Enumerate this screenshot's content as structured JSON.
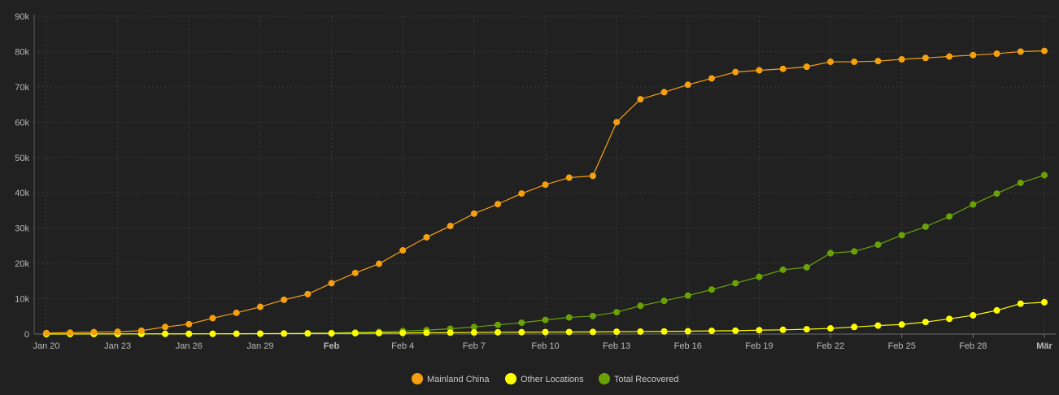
{
  "chart_data": {
    "type": "line",
    "title": "",
    "xlabel": "",
    "ylabel": "",
    "ylim": [
      0,
      90000
    ],
    "grid": true,
    "legend_position": "bottom-center",
    "y_ticks": [
      "0",
      "10k",
      "20k",
      "30k",
      "40k",
      "50k",
      "60k",
      "70k",
      "80k",
      "90k"
    ],
    "x_ticks": [
      {
        "label": "Jan 20",
        "index": 0,
        "bold": false
      },
      {
        "label": "Jan 23",
        "index": 3,
        "bold": false
      },
      {
        "label": "Jan 26",
        "index": 6,
        "bold": false
      },
      {
        "label": "Jan 29",
        "index": 9,
        "bold": false
      },
      {
        "label": "Feb",
        "index": 12,
        "bold": true
      },
      {
        "label": "Feb 4",
        "index": 15,
        "bold": false
      },
      {
        "label": "Feb 7",
        "index": 18,
        "bold": false
      },
      {
        "label": "Feb 10",
        "index": 21,
        "bold": false
      },
      {
        "label": "Feb 13",
        "index": 24,
        "bold": false
      },
      {
        "label": "Feb 16",
        "index": 27,
        "bold": false
      },
      {
        "label": "Feb 19",
        "index": 30,
        "bold": false
      },
      {
        "label": "Feb 22",
        "index": 33,
        "bold": false
      },
      {
        "label": "Feb 25",
        "index": 36,
        "bold": false
      },
      {
        "label": "Feb 28",
        "index": 39,
        "bold": false
      },
      {
        "label": "Mär",
        "index": 42,
        "bold": true
      }
    ],
    "x": [
      "Jan 20",
      "Jan 21",
      "Jan 22",
      "Jan 23",
      "Jan 24",
      "Jan 25",
      "Jan 26",
      "Jan 27",
      "Jan 28",
      "Jan 29",
      "Jan 30",
      "Jan 31",
      "Feb 1",
      "Feb 2",
      "Feb 3",
      "Feb 4",
      "Feb 5",
      "Feb 6",
      "Feb 7",
      "Feb 8",
      "Feb 9",
      "Feb 10",
      "Feb 11",
      "Feb 12",
      "Feb 13",
      "Feb 14",
      "Feb 15",
      "Feb 16",
      "Feb 17",
      "Feb 18",
      "Feb 19",
      "Feb 20",
      "Feb 21",
      "Feb 22",
      "Feb 23",
      "Feb 24",
      "Feb 25",
      "Feb 26",
      "Feb 27",
      "Feb 28",
      "Feb 29",
      "Mar 1",
      "Mar 2"
    ],
    "series": [
      {
        "name": "Mainland China",
        "color": "#f5a00f",
        "values": [
          300,
          400,
          550,
          650,
          950,
          2000,
          2800,
          4500,
          6000,
          7700,
          9700,
          11300,
          14400,
          17300,
          19900,
          23700,
          27400,
          30600,
          34100,
          36800,
          39800,
          42300,
          44300,
          44800,
          60000,
          66500,
          68500,
          70600,
          72400,
          74200,
          74700,
          75100,
          75700,
          77100,
          77100,
          77300,
          77800,
          78200,
          78600,
          79000,
          79400,
          80000,
          80200
        ]
      },
      {
        "name": "Other Locations",
        "color": "#ffff00",
        "values": [
          0,
          10,
          20,
          30,
          40,
          50,
          60,
          70,
          80,
          100,
          130,
          160,
          200,
          240,
          280,
          320,
          360,
          400,
          450,
          500,
          520,
          560,
          580,
          600,
          650,
          700,
          750,
          800,
          900,
          950,
          1100,
          1200,
          1350,
          1600,
          2000,
          2400,
          2700,
          3400,
          4300,
          5300,
          6700,
          8600,
          9000
        ]
      },
      {
        "name": "Total Recovered",
        "color": "#6aa205",
        "values": [
          0,
          0,
          20,
          30,
          40,
          50,
          60,
          70,
          100,
          130,
          170,
          220,
          280,
          470,
          600,
          850,
          1100,
          1500,
          2000,
          2600,
          3200,
          4000,
          4700,
          5100,
          6200,
          8000,
          9400,
          10900,
          12600,
          14400,
          16200,
          18200,
          18900,
          22900,
          23400,
          25300,
          28000,
          30400,
          33300,
          36700,
          39800,
          42800,
          45000
        ]
      }
    ]
  }
}
